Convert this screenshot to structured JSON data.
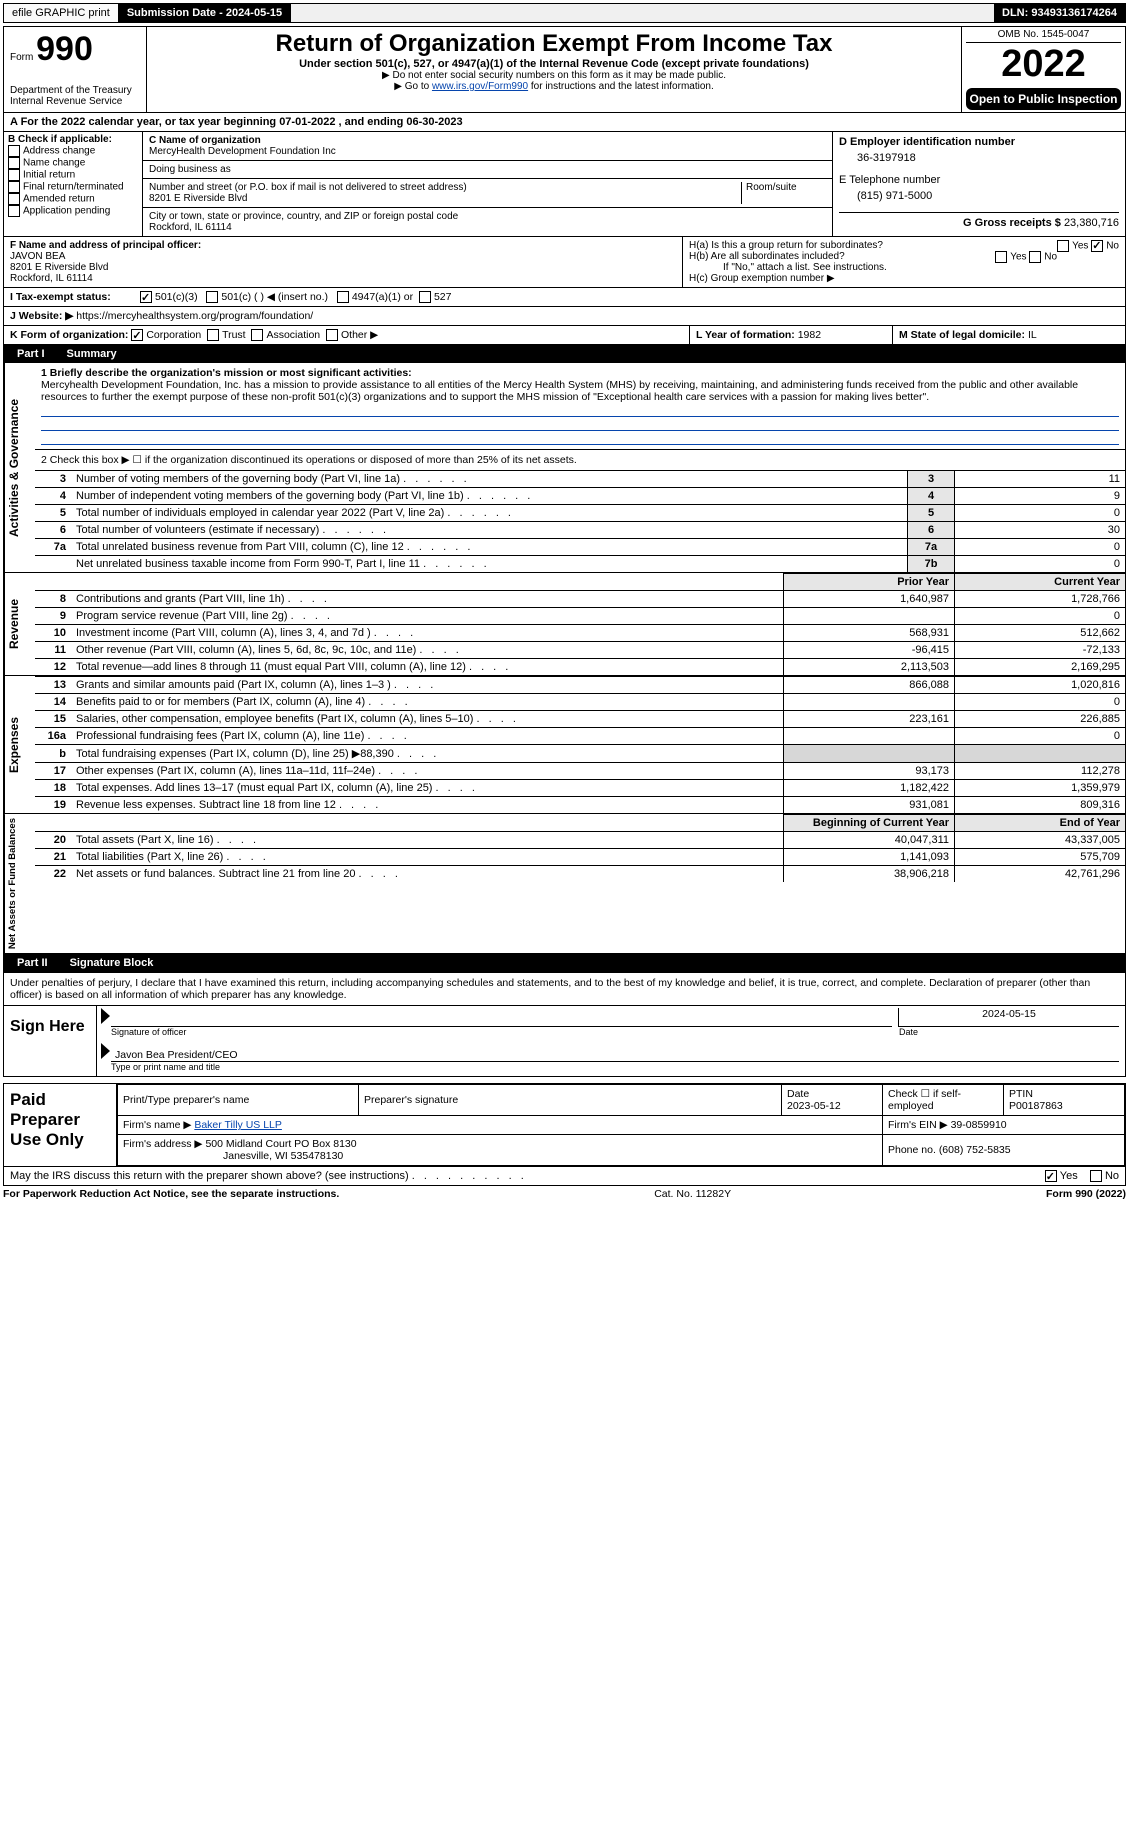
{
  "topbar": {
    "efile": "efile GRAPHIC print",
    "submission_label": "Submission Date - 2024-05-15",
    "dln": "DLN: 93493136174264"
  },
  "header": {
    "form_label": "Form",
    "form_number": "990",
    "dept1": "Department of the Treasury",
    "dept2": "Internal Revenue Service",
    "title": "Return of Organization Exempt From Income Tax",
    "sub1": "Under section 501(c), 527, or 4947(a)(1) of the Internal Revenue Code (except private foundations)",
    "sub2": "▶ Do not enter social security numbers on this form as it may be made public.",
    "sub3_prefix": "▶ Go to ",
    "sub3_link": "www.irs.gov/Form990",
    "sub3_suffix": " for instructions and the latest information.",
    "omb": "OMB No. 1545-0047",
    "year": "2022",
    "open": "Open to Public Inspection"
  },
  "line_a": "A For the 2022 calendar year, or tax year beginning 07-01-2022    , and ending 06-30-2023",
  "section_b": {
    "label": "B Check if applicable:",
    "items": [
      "Address change",
      "Name change",
      "Initial return",
      "Final return/terminated",
      "Amended return",
      "Application pending"
    ]
  },
  "section_c": {
    "name_label": "C Name of organization",
    "name": "MercyHealth Development Foundation Inc",
    "dba_label": "Doing business as",
    "dba": "",
    "street_label": "Number and street (or P.O. box if mail is not delivered to street address)",
    "room_label": "Room/suite",
    "street": "8201 E Riverside Blvd",
    "city_label": "City or town, state or province, country, and ZIP or foreign postal code",
    "city": "Rockford, IL  61114"
  },
  "section_d": {
    "label": "D Employer identification number",
    "value": "36-3197918"
  },
  "section_e": {
    "label": "E Telephone number",
    "value": "(815) 971-5000"
  },
  "section_g": {
    "label": "G Gross receipts $",
    "value": "23,380,716"
  },
  "section_f": {
    "label": "F  Name and address of principal officer:",
    "name": "JAVON BEA",
    "street": "8201 E Riverside Blvd",
    "city": "Rockford, IL  61114"
  },
  "section_h": {
    "ha": "H(a)  Is this a group return for subordinates?",
    "ha_yes": "Yes",
    "ha_no": "No",
    "hb": "H(b)  Are all subordinates included?",
    "hb_yes": "Yes",
    "hb_no": "No",
    "hb_note": "If \"No,\" attach a list. See instructions.",
    "hc": "H(c)  Group exemption number ▶"
  },
  "section_i": {
    "label": "I  Tax-exempt status:",
    "c501c3": "501(c)(3)",
    "c501c": "501(c) (   ) ◀ (insert no.)",
    "c4947": "4947(a)(1) or",
    "c527": "527"
  },
  "section_j": {
    "label": "J  Website: ▶",
    "value": "https://mercyhealthsystem.org/program/foundation/"
  },
  "section_k": {
    "label": "K Form of organization:",
    "corp": "Corporation",
    "trust": "Trust",
    "assoc": "Association",
    "other": "Other ▶"
  },
  "section_l": {
    "label": "L Year of formation:",
    "value": "1982"
  },
  "section_m": {
    "label": "M State of legal domicile:",
    "value": "IL"
  },
  "part1": {
    "tab": "Part I",
    "title": "Summary"
  },
  "mission": {
    "label": "1  Briefly describe the organization's mission or most significant activities:",
    "text": "Mercyhealth Development Foundation, Inc. has a mission to provide assistance to all entities of the Mercy Health System (MHS) by receiving, maintaining, and administering funds received from the public and other available resources to further the exempt purpose of these non-profit 501(c)(3) organizations and to support the MHS mission of \"Exceptional health care services with a passion for making lives better\"."
  },
  "governance": {
    "line2": "2  Check this box ▶ ☐  if the organization discontinued its operations or disposed of more than 25% of its net assets.",
    "rows": [
      {
        "n": "3",
        "label": "Number of voting members of the governing body (Part VI, line 1a)",
        "box": "3",
        "val": "11"
      },
      {
        "n": "4",
        "label": "Number of independent voting members of the governing body (Part VI, line 1b)",
        "box": "4",
        "val": "9"
      },
      {
        "n": "5",
        "label": "Total number of individuals employed in calendar year 2022 (Part V, line 2a)",
        "box": "5",
        "val": "0"
      },
      {
        "n": "6",
        "label": "Total number of volunteers (estimate if necessary)",
        "box": "6",
        "val": "30"
      },
      {
        "n": "7a",
        "label": "Total unrelated business revenue from Part VIII, column (C), line 12",
        "box": "7a",
        "val": "0"
      },
      {
        "n": "",
        "label": "Net unrelated business taxable income from Form 990-T, Part I, line 11",
        "box": "7b",
        "val": "0"
      }
    ]
  },
  "fin_hdr": {
    "prior": "Prior Year",
    "curr": "Current Year"
  },
  "revenue": {
    "sidebar": "Revenue",
    "rows": [
      {
        "n": "8",
        "label": "Contributions and grants (Part VIII, line 1h)",
        "prior": "1,640,987",
        "curr": "1,728,766"
      },
      {
        "n": "9",
        "label": "Program service revenue (Part VIII, line 2g)",
        "prior": "",
        "curr": "0"
      },
      {
        "n": "10",
        "label": "Investment income (Part VIII, column (A), lines 3, 4, and 7d )",
        "prior": "568,931",
        "curr": "512,662"
      },
      {
        "n": "11",
        "label": "Other revenue (Part VIII, column (A), lines 5, 6d, 8c, 9c, 10c, and 11e)",
        "prior": "-96,415",
        "curr": "-72,133"
      },
      {
        "n": "12",
        "label": "Total revenue—add lines 8 through 11 (must equal Part VIII, column (A), line 12)",
        "prior": "2,113,503",
        "curr": "2,169,295"
      }
    ]
  },
  "expenses": {
    "sidebar": "Expenses",
    "rows": [
      {
        "n": "13",
        "label": "Grants and similar amounts paid (Part IX, column (A), lines 1–3 )",
        "prior": "866,088",
        "curr": "1,020,816"
      },
      {
        "n": "14",
        "label": "Benefits paid to or for members (Part IX, column (A), line 4)",
        "prior": "",
        "curr": "0"
      },
      {
        "n": "15",
        "label": "Salaries, other compensation, employee benefits (Part IX, column (A), lines 5–10)",
        "prior": "223,161",
        "curr": "226,885"
      },
      {
        "n": "16a",
        "label": "Professional fundraising fees (Part IX, column (A), line 11e)",
        "prior": "",
        "curr": "0"
      },
      {
        "n": "b",
        "label": "Total fundraising expenses (Part IX, column (D), line 25) ▶88,390",
        "prior": "shade",
        "curr": "shade"
      },
      {
        "n": "17",
        "label": "Other expenses (Part IX, column (A), lines 11a–11d, 11f–24e)",
        "prior": "93,173",
        "curr": "112,278"
      },
      {
        "n": "18",
        "label": "Total expenses. Add lines 13–17 (must equal Part IX, column (A), line 25)",
        "prior": "1,182,422",
        "curr": "1,359,979"
      },
      {
        "n": "19",
        "label": "Revenue less expenses. Subtract line 18 from line 12",
        "prior": "931,081",
        "curr": "809,316"
      }
    ]
  },
  "netassets": {
    "sidebar": "Net Assets or Fund Balances",
    "hdr_prior": "Beginning of Current Year",
    "hdr_curr": "End of Year",
    "rows": [
      {
        "n": "20",
        "label": "Total assets (Part X, line 16)",
        "prior": "40,047,311",
        "curr": "43,337,005"
      },
      {
        "n": "21",
        "label": "Total liabilities (Part X, line 26)",
        "prior": "1,141,093",
        "curr": "575,709"
      },
      {
        "n": "22",
        "label": "Net assets or fund balances. Subtract line 21 from line 20",
        "prior": "38,906,218",
        "curr": "42,761,296"
      }
    ]
  },
  "part2": {
    "tab": "Part II",
    "title": "Signature Block"
  },
  "sig": {
    "decl": "Under penalties of perjury, I declare that I have examined this return, including accompanying schedules and statements, and to the best of my knowledge and belief, it is true, correct, and complete. Declaration of preparer (other than officer) is based on all information of which preparer has any knowledge.",
    "sign_here": "Sign Here",
    "sig_of_officer": "Signature of officer",
    "date_label": "Date",
    "date_val": "2024-05-15",
    "name_title": "Javon Bea  President/CEO",
    "name_title_label": "Type or print name and title"
  },
  "paid": {
    "label": "Paid Preparer Use Only",
    "h1": "Print/Type preparer's name",
    "h2": "Preparer's signature",
    "h3": "Date",
    "date": "2023-05-12",
    "h4": "Check ☐ if self-employed",
    "h5": "PTIN",
    "ptin": "P00187863",
    "firm_name_label": "Firm's name     ▶",
    "firm_name": "Baker Tilly US LLP",
    "firm_ein_label": "Firm's EIN ▶",
    "firm_ein": "39-0859910",
    "firm_addr_label": "Firm's address ▶",
    "firm_addr1": "500 Midland Court PO Box 8130",
    "firm_addr2": "Janesville, WI  535478130",
    "phone_label": "Phone no.",
    "phone": "(608) 752-5835"
  },
  "discuss": {
    "q": "May the IRS discuss this return with the preparer shown above? (see instructions)",
    "yes": "Yes",
    "no": "No"
  },
  "footer": {
    "left": "For Paperwork Reduction Act Notice, see the separate instructions.",
    "mid": "Cat. No. 11282Y",
    "right": "Form 990 (2022)"
  }
}
